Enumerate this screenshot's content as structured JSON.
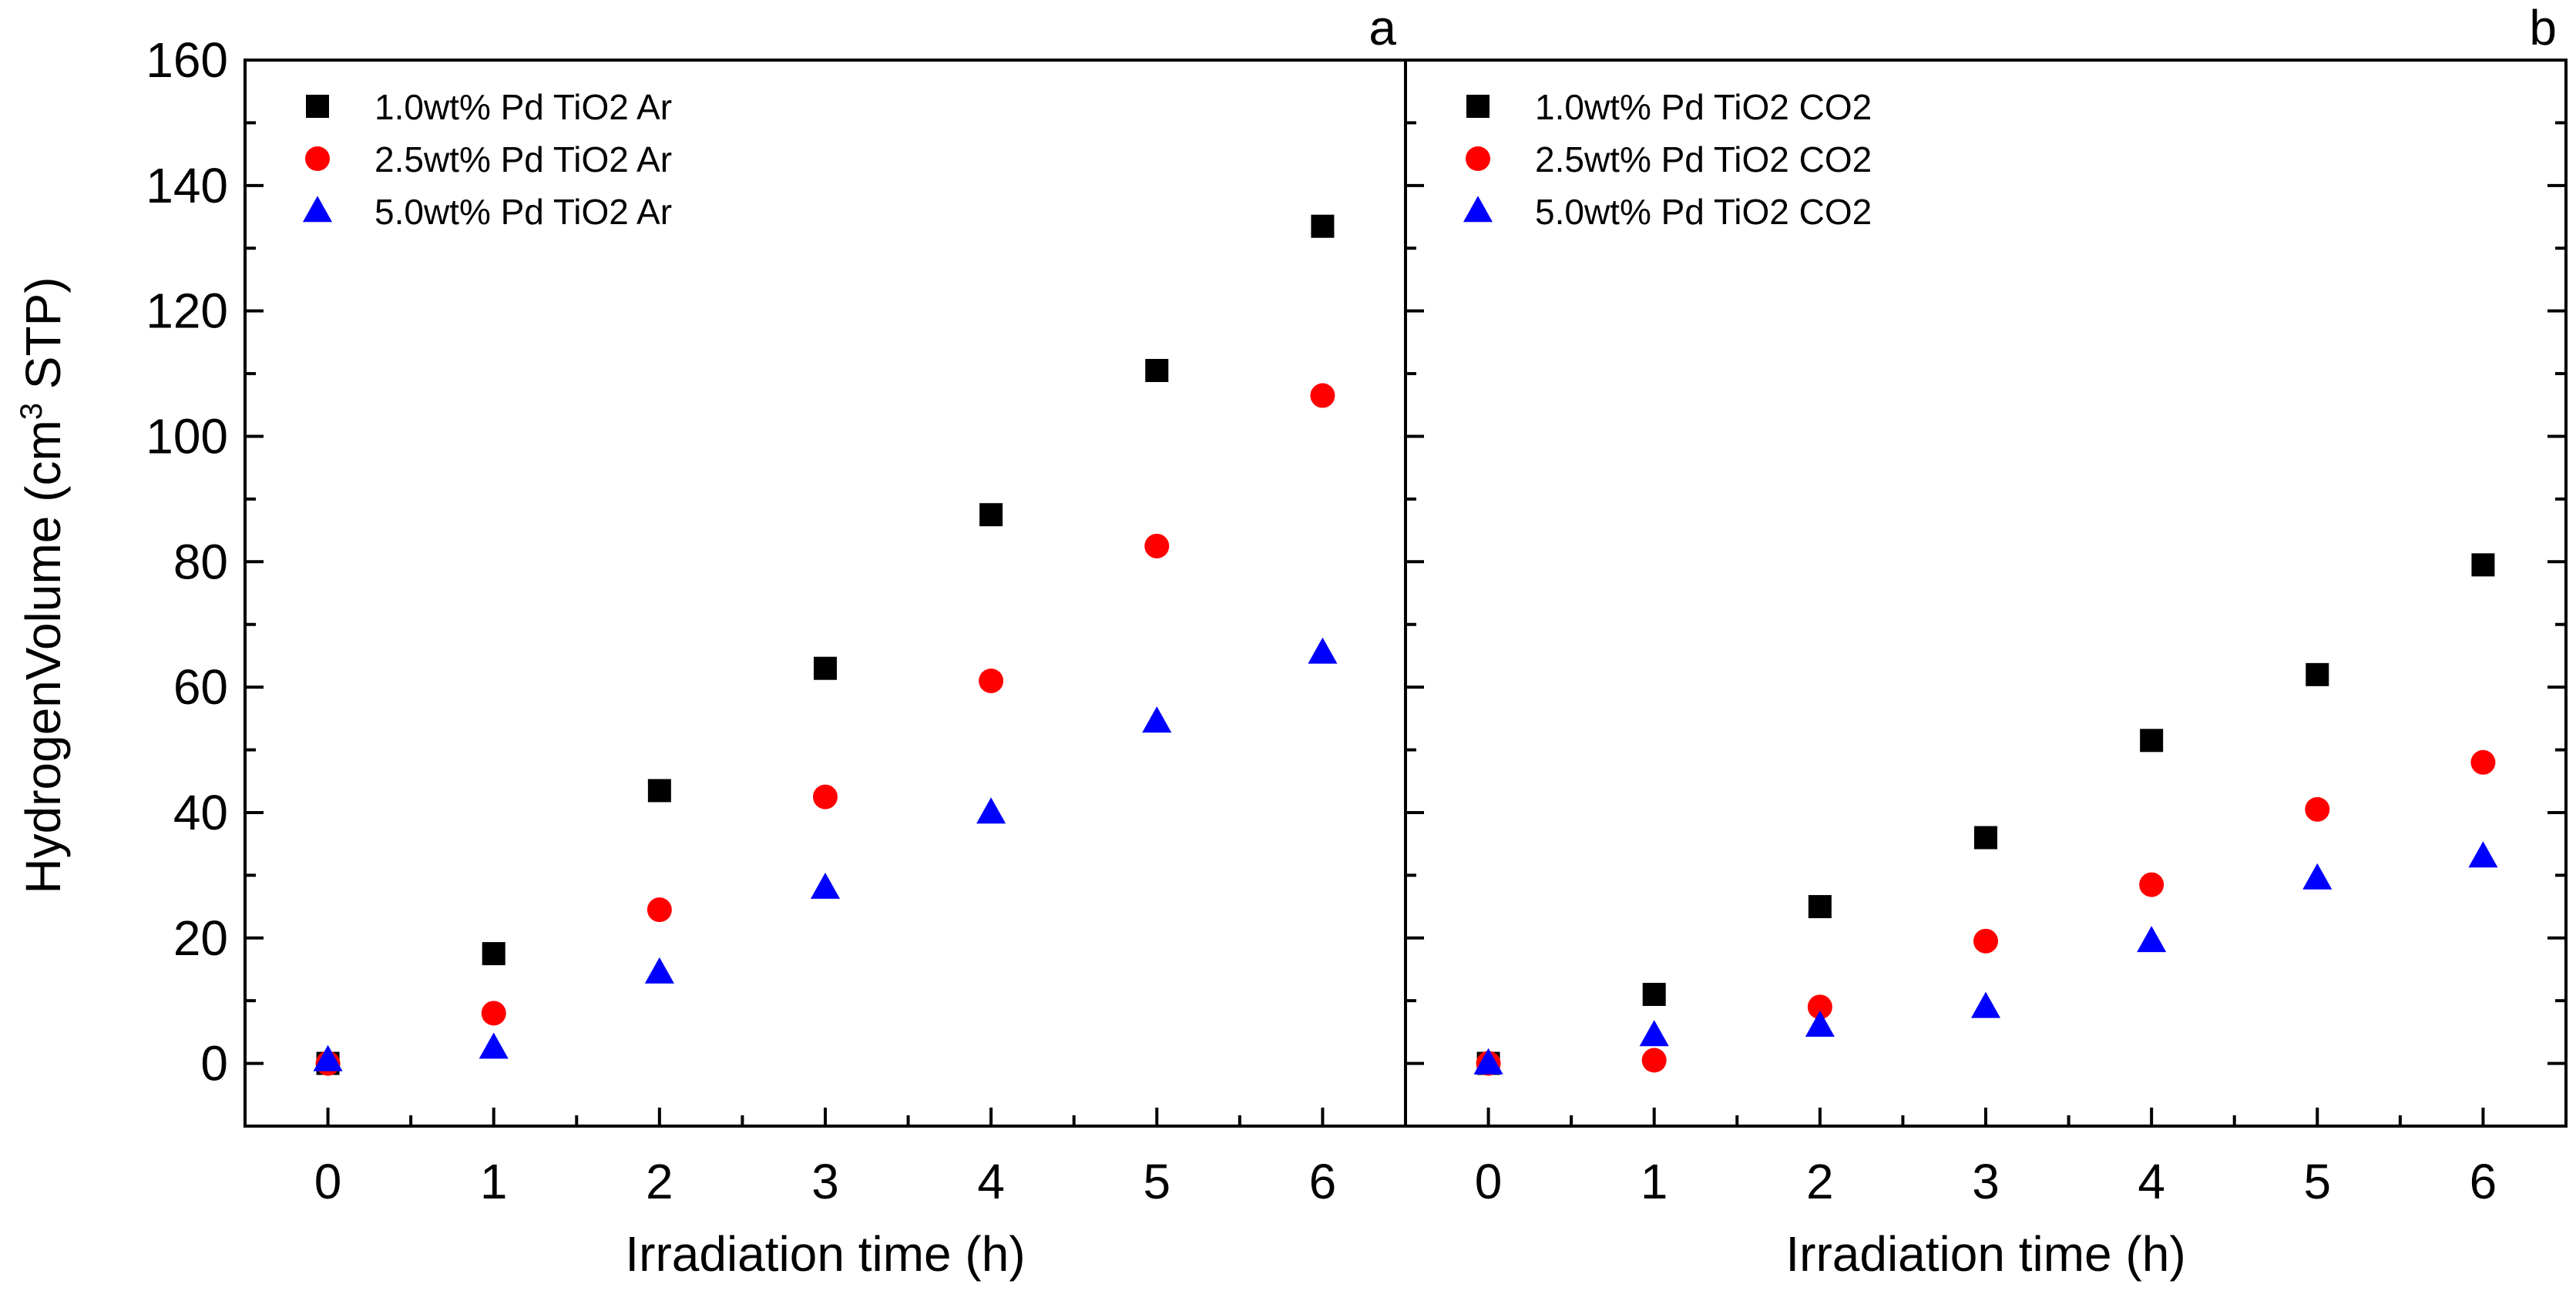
{
  "figure": {
    "yaxis_label": "HydrogenVolume (cm",
    "yaxis_sup": "3",
    "yaxis_label_end": " STP)"
  },
  "chart_data": [
    {
      "type": "scatter",
      "panel": "a",
      "xlabel": "Irradiation time (h)",
      "ylabel": "HydrogenVolume (cm3 STP)",
      "xlim": [
        -0.5,
        6.5
      ],
      "ylim": [
        -10,
        160
      ],
      "xticks": [
        0,
        1,
        2,
        3,
        4,
        5,
        6
      ],
      "yticks": [
        0,
        20,
        40,
        60,
        80,
        100,
        120,
        140,
        160
      ],
      "legend_position": "top-left",
      "series": [
        {
          "name": "1.0wt% Pd TiO2 Ar",
          "marker": "square",
          "color": "#000000",
          "x": [
            0,
            1,
            2,
            3,
            4,
            5,
            6
          ],
          "y": [
            0,
            17.5,
            43.5,
            63,
            87.5,
            110.5,
            133.5
          ]
        },
        {
          "name": "2.5wt% Pd TiO2 Ar",
          "marker": "circle",
          "color": "#ff0000",
          "x": [
            0,
            1,
            2,
            3,
            4,
            5,
            6
          ],
          "y": [
            0,
            8,
            24.5,
            42.5,
            61,
            82.5,
            106.5
          ]
        },
        {
          "name": "5.0wt% Pd TiO2 Ar",
          "marker": "triangle",
          "color": "#0000ff",
          "x": [
            0,
            1,
            2,
            3,
            4,
            5,
            6
          ],
          "y": [
            0.5,
            2.5,
            14.5,
            28,
            40,
            54.5,
            65.5
          ]
        }
      ]
    },
    {
      "type": "scatter",
      "panel": "b",
      "xlabel": "Irradiation time (h)",
      "ylabel": "HydrogenVolume (cm3 STP)",
      "xlim": [
        -0.5,
        6.5
      ],
      "ylim": [
        -10,
        160
      ],
      "xticks": [
        0,
        1,
        2,
        3,
        4,
        5,
        6
      ],
      "yticks": [
        0,
        20,
        40,
        60,
        80,
        100,
        120,
        140,
        160
      ],
      "legend_position": "top-left",
      "series": [
        {
          "name": "1.0wt% Pd TiO2 CO2",
          "marker": "square",
          "color": "#000000",
          "x": [
            0,
            1,
            2,
            3,
            4,
            5,
            6
          ],
          "y": [
            0,
            11,
            25,
            36,
            51.5,
            62,
            79.5
          ]
        },
        {
          "name": "2.5wt% Pd TiO2 CO2",
          "marker": "circle",
          "color": "#ff0000",
          "x": [
            0,
            1,
            2,
            3,
            4,
            5,
            6
          ],
          "y": [
            0,
            0.5,
            9,
            19.5,
            28.5,
            40.5,
            48
          ]
        },
        {
          "name": "5.0wt% Pd TiO2 CO2",
          "marker": "triangle",
          "color": "#0000ff",
          "x": [
            0,
            1,
            2,
            3,
            4,
            5,
            6
          ],
          "y": [
            0,
            4.5,
            6,
            9,
            19.5,
            29.5,
            33
          ]
        }
      ]
    }
  ]
}
